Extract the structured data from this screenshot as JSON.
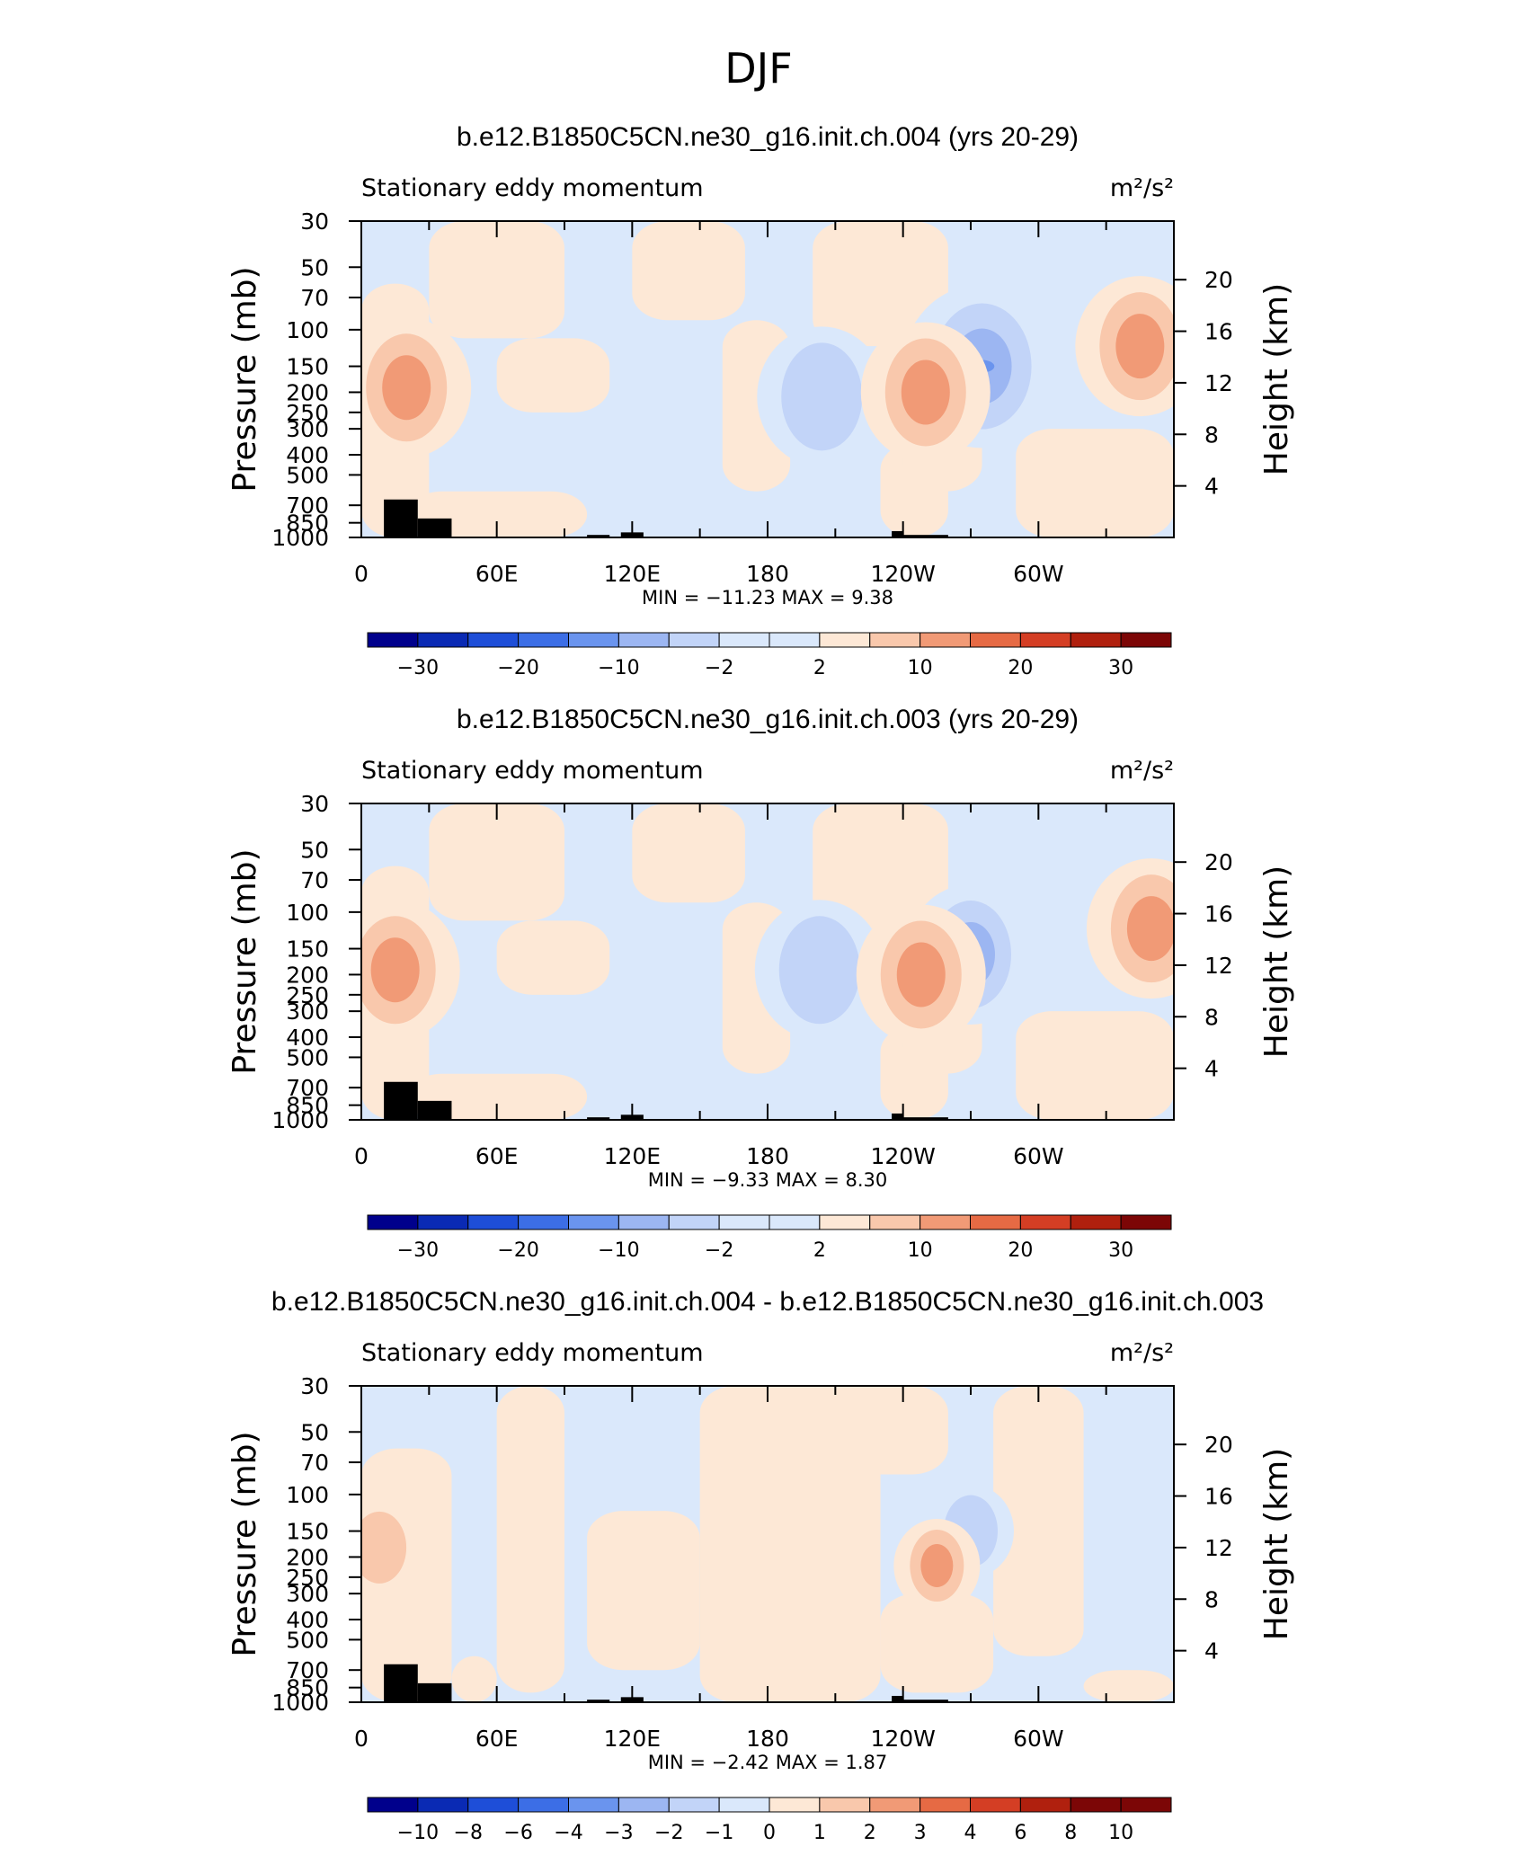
{
  "figure": {
    "title": "DJF"
  },
  "chart_data": [
    {
      "type": "heatmap",
      "title": "b.e12.B1850C5CN.ne30_g16.init.ch.004 (yrs 20-29)",
      "subtitle_left": "Stationary eddy momentum",
      "units": "m²/s²",
      "ylabel": "Pressure  (mb)",
      "ylabel_right": "Height  (km)",
      "x_ticks": [
        "0",
        "60E",
        "120E",
        "180",
        "120W",
        "60W"
      ],
      "y_ticks": [
        "30",
        "50",
        "70",
        "100",
        "150",
        "200",
        "250",
        "300",
        "400",
        "500",
        "700",
        "850",
        "1000"
      ],
      "y_right_ticks": [
        "20",
        "16",
        "12",
        "8",
        "4"
      ],
      "min_max_text": "MIN = −11.23   MAX =    9.38",
      "min": -11.23,
      "max": 9.38,
      "colorbar_labels": [
        "−30",
        "−20",
        "−10",
        "−2",
        "2",
        "10",
        "20",
        "30"
      ],
      "features": [
        {
          "lon": 20,
          "p": 190,
          "value": 6
        },
        {
          "lon": 204,
          "p": 210,
          "value": -7
        },
        {
          "lon": 275,
          "p": 150,
          "value": -11
        },
        {
          "lon": 250,
          "p": 200,
          "value": 5
        },
        {
          "lon": 345,
          "p": 120,
          "value": 3
        }
      ]
    },
    {
      "type": "heatmap",
      "title": "b.e12.B1850C5CN.ne30_g16.init.ch.003 (yrs 20-29)",
      "subtitle_left": "Stationary eddy momentum",
      "units": "m²/s²",
      "ylabel": "Pressure  (mb)",
      "ylabel_right": "Height  (km)",
      "x_ticks": [
        "0",
        "60E",
        "120E",
        "180",
        "120W",
        "60W"
      ],
      "y_ticks": [
        "30",
        "50",
        "70",
        "100",
        "150",
        "200",
        "250",
        "300",
        "400",
        "500",
        "700",
        "850",
        "1000"
      ],
      "y_right_ticks": [
        "20",
        "16",
        "12",
        "8",
        "4"
      ],
      "min_max_text": "MIN =    −9.33   MAX =    8.30",
      "min": -9.33,
      "max": 8.3,
      "colorbar_labels": [
        "−30",
        "−20",
        "−10",
        "−2",
        "2",
        "10",
        "20",
        "30"
      ],
      "features": [
        {
          "lon": 15,
          "p": 190,
          "value": 7
        },
        {
          "lon": 203,
          "p": 190,
          "value": -7
        },
        {
          "lon": 270,
          "p": 160,
          "value": -8
        },
        {
          "lon": 248,
          "p": 200,
          "value": 4
        },
        {
          "lon": 350,
          "p": 120,
          "value": 3
        }
      ]
    },
    {
      "type": "heatmap",
      "title": "b.e12.B1850C5CN.ne30_g16.init.ch.004 - b.e12.B1850C5CN.ne30_g16.init.ch.003",
      "subtitle_left": "Stationary eddy momentum",
      "units": "m²/s²",
      "ylabel": "Pressure  (mb)",
      "ylabel_right": "Height  (km)",
      "x_ticks": [
        "0",
        "60E",
        "120E",
        "180",
        "120W",
        "60W"
      ],
      "y_ticks": [
        "30",
        "50",
        "70",
        "100",
        "150",
        "200",
        "250",
        "300",
        "400",
        "500",
        "700",
        "850",
        "1000"
      ],
      "y_right_ticks": [
        "20",
        "16",
        "12",
        "8",
        "4"
      ],
      "min_max_text": "MIN =    −2.42   MAX =    1.87",
      "min": -2.42,
      "max": 1.87,
      "colorbar_labels": [
        "−10",
        "−8",
        "−6",
        "−4",
        "−3",
        "−2",
        "−1",
        "0",
        "1",
        "2",
        "3",
        "4",
        "6",
        "8",
        "10"
      ],
      "features": [
        {
          "lon": 270,
          "p": 150,
          "value": -2.4
        },
        {
          "lon": 255,
          "p": 220,
          "value": 1.8
        },
        {
          "lon": 8,
          "p": 180,
          "value": 1.2
        }
      ]
    }
  ],
  "colorbar_colors": [
    "#00008c",
    "#0a2ab4",
    "#1e4ed8",
    "#3c6ee6",
    "#6a94ee",
    "#9cb6f2",
    "#c2d4f8",
    "#dae8fb",
    "#fde8d6",
    "#f9c8ac",
    "#f19a76",
    "#e66a44",
    "#d43e24",
    "#b0200e",
    "#7c0606"
  ]
}
